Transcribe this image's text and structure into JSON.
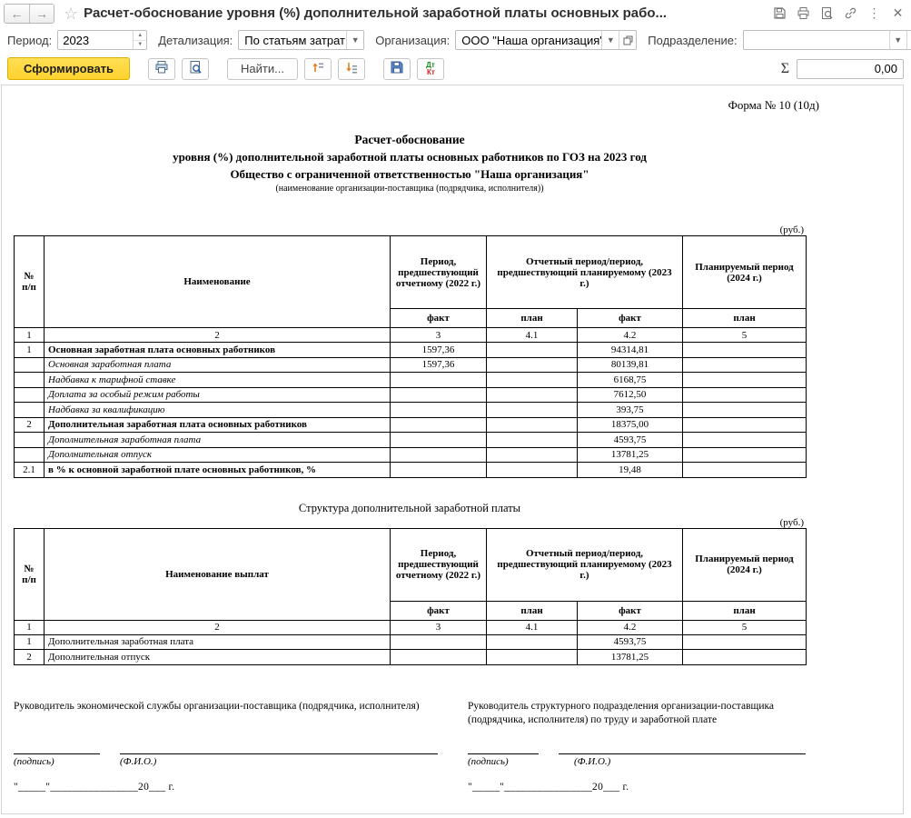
{
  "header": {
    "title": "Расчет-обоснование уровня (%) дополнительной заработной платы основных рабо..."
  },
  "filters": {
    "period": {
      "label": "Период:",
      "value": "2023"
    },
    "detail": {
      "label": "Детализация:",
      "value": "По статьям затрат"
    },
    "org": {
      "label": "Организация:",
      "value": "ООО \"Наша организация\""
    },
    "division": {
      "label": "Подразделение:",
      "value": ""
    }
  },
  "toolbar": {
    "generate_label": "Сформировать",
    "find_label": "Найти...",
    "dt": "Дт",
    "kt": "Кт",
    "sum_symbol": "Σ",
    "sum_value": "0,00"
  },
  "report": {
    "form_number": "Форма № 10 (10д)",
    "title_bold": "Расчет-обоснование",
    "title_line2": "уровня (%) дополнительной заработной платы основных работников по ГОЗ на 2023 год",
    "title_line3": "Общество с ограниченной ответственностью \"Наша организация\"",
    "title_note": "(наименование организации-поставщика (подрядчика, исполнителя))",
    "rub": "(руб.)",
    "section2_title": "Структура дополнительной заработной платы",
    "table1": {
      "h_num": "№\nп/п",
      "h_name": "Наименование",
      "h_p2022": "Период,\nпредшествующий\nотчетному (2022 г.)",
      "h_p2023": "Отчетный период/период,\nпредшествующий планируемому (2023\nг.)",
      "h_p2024": "Планируемый период\n(2024 г.)",
      "h_fact": "факт",
      "h_plan": "план",
      "colnums": [
        "1",
        "2",
        "3",
        "4.1",
        "4.2",
        "5"
      ],
      "rows": [
        {
          "num": "1",
          "name": "Основная заработная плата основных работников",
          "italic": false,
          "strong": true,
          "fact2022": "1597,36",
          "plan2023": "",
          "fact2023": "94314,81",
          "plan2024": ""
        },
        {
          "num": "",
          "name": "Основная заработная плата",
          "italic": true,
          "strong": false,
          "fact2022": "1597,36",
          "plan2023": "",
          "fact2023": "80139,81",
          "plan2024": ""
        },
        {
          "num": "",
          "name": "Надбавка к тарифной ставке",
          "italic": true,
          "strong": false,
          "fact2022": "",
          "plan2023": "",
          "fact2023": "6168,75",
          "plan2024": ""
        },
        {
          "num": "",
          "name": "Доплата за особый режим работы",
          "italic": true,
          "strong": false,
          "fact2022": "",
          "plan2023": "",
          "fact2023": "7612,50",
          "plan2024": ""
        },
        {
          "num": "",
          "name": "Надбавка за квалификацию",
          "italic": true,
          "strong": false,
          "fact2022": "",
          "plan2023": "",
          "fact2023": "393,75",
          "plan2024": ""
        },
        {
          "num": "2",
          "name": "Дополнительная заработная плата основных работников",
          "italic": false,
          "strong": true,
          "fact2022": "",
          "plan2023": "",
          "fact2023": "18375,00",
          "plan2024": ""
        },
        {
          "num": "",
          "name": "Дополнительная заработная плата",
          "italic": true,
          "strong": false,
          "fact2022": "",
          "plan2023": "",
          "fact2023": "4593,75",
          "plan2024": ""
        },
        {
          "num": "",
          "name": "Дополнительная отпуск",
          "italic": true,
          "strong": false,
          "fact2022": "",
          "plan2023": "",
          "fact2023": "13781,25",
          "plan2024": ""
        },
        {
          "num": "2.1",
          "name": "в % к основной заработной плате основных работников, %",
          "italic": false,
          "strong": true,
          "fact2022": "",
          "plan2023": "",
          "fact2023": "19,48",
          "plan2024": ""
        }
      ]
    },
    "table2": {
      "h_num": "№\nп/п",
      "h_name": "Наименование выплат",
      "h_p2022": "Период,\nпредшествующий\nотчетному (2022 г.)",
      "h_p2023": "Отчетный период/период,\nпредшествующий планируемому (2023\nг.)",
      "h_p2024": "Планируемый период\n(2024 г.)",
      "h_fact": "факт",
      "h_plan": "план",
      "colnums": [
        "1",
        "2",
        "3",
        "4.1",
        "4.2",
        "5"
      ],
      "rows": [
        {
          "num": "1",
          "name": "Дополнительная заработная плата",
          "italic": false,
          "strong": false,
          "fact2022": "",
          "plan2023": "",
          "fact2023": "4593,75",
          "plan2024": ""
        },
        {
          "num": "2",
          "name": "Дополнительная отпуск",
          "italic": false,
          "strong": false,
          "fact2022": "",
          "plan2023": "",
          "fact2023": "13781,25",
          "plan2024": ""
        }
      ]
    },
    "signatures": {
      "left_title": "Руководитель экономической службы организации-поставщика (подрядчика, исполнителя)",
      "right_title": "Руководитель структурного подразделения организации-поставщика (подрядчика, исполнителя) по труду и заработной плате",
      "sign_label": "(подпись)",
      "fio_label": "(Ф.И.О.)",
      "date_line": "\"_____\"________________20___ г."
    }
  }
}
